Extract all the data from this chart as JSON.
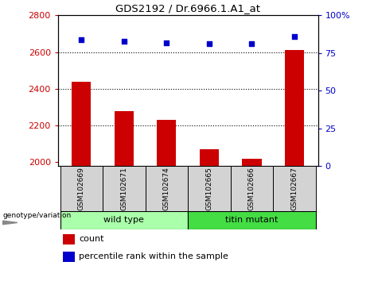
{
  "title": "GDS2192 / Dr.6966.1.A1_at",
  "samples": [
    "GSM102669",
    "GSM102671",
    "GSM102674",
    "GSM102665",
    "GSM102666",
    "GSM102667"
  ],
  "counts": [
    2440,
    2280,
    2230,
    2070,
    2020,
    2610
  ],
  "percentiles": [
    84,
    83,
    82,
    81,
    81,
    86
  ],
  "wt_color": "#AAFFAA",
  "tm_color": "#44DD44",
  "ylim_left": [
    1980,
    2800
  ],
  "ylim_right": [
    0,
    100
  ],
  "yticks_left": [
    2000,
    2200,
    2400,
    2600,
    2800
  ],
  "yticks_right": [
    0,
    25,
    50,
    75,
    100
  ],
  "bar_color": "#CC0000",
  "dot_color": "#0000CC",
  "label_count": "count",
  "label_percentile": "percentile rank within the sample",
  "genotype_label": "genotype/variation"
}
